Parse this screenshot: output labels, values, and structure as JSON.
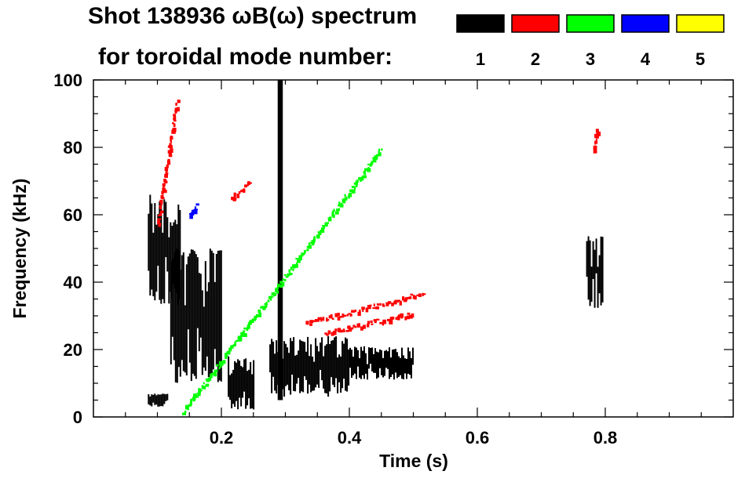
{
  "title_line1": "Shot 138936 ωB(ω) spectrum",
  "title_line2": "for toroidal mode number:",
  "chart_data": {
    "type": "heatmap",
    "title": "Shot 138936 ωB(ω) spectrum for toroidal mode number:",
    "xlabel": "Time (s)",
    "ylabel": "Frequency (kHz)",
    "xlim": [
      0.0,
      1.0
    ],
    "ylim": [
      0,
      100
    ],
    "x_ticks": [
      0.2,
      0.4,
      0.6,
      0.8
    ],
    "x_tick_labels": [
      "0.2",
      "0.4",
      "0.6",
      "0.8"
    ],
    "y_ticks": [
      0,
      20,
      40,
      60,
      80,
      100
    ],
    "y_tick_labels": [
      "0",
      "20",
      "40",
      "60",
      "80",
      "100"
    ],
    "grid": false,
    "legend_position": "top-right",
    "legend": [
      {
        "mode": "1",
        "color": "#000000"
      },
      {
        "mode": "2",
        "color": "#ff0000"
      },
      {
        "mode": "3",
        "color": "#00ff00"
      },
      {
        "mode": "4",
        "color": "#0000ff"
      },
      {
        "mode": "5",
        "color": "#ffff00"
      }
    ],
    "regions": [
      {
        "name": "early-n1-band",
        "mode": "1",
        "t": [
          0.085,
          0.135
        ],
        "f": [
          32,
          66
        ]
      },
      {
        "name": "early-n1-lower",
        "mode": "1",
        "t": [
          0.085,
          0.115
        ],
        "f": [
          3,
          7
        ]
      },
      {
        "name": "n1-spread-0.13-0.20",
        "mode": "1",
        "t": [
          0.12,
          0.2
        ],
        "f": [
          10,
          50
        ]
      },
      {
        "name": "n1-burst-0.21-0.25",
        "mode": "1",
        "t": [
          0.21,
          0.25
        ],
        "f": [
          2,
          18
        ]
      },
      {
        "name": "n1-vertical-0.29",
        "mode": "1",
        "t": [
          0.288,
          0.296
        ],
        "f": [
          5,
          100
        ]
      },
      {
        "name": "n1-main-band",
        "mode": "1",
        "t": [
          0.275,
          0.4
        ],
        "f": [
          6,
          24
        ]
      },
      {
        "name": "n1-tail-band",
        "mode": "1",
        "t": [
          0.4,
          0.5
        ],
        "f": [
          11,
          21
        ]
      },
      {
        "name": "n1-0.78-burst",
        "mode": "1",
        "t": [
          0.77,
          0.795
        ],
        "f": [
          32,
          54
        ]
      },
      {
        "name": "n2-early-chirp",
        "mode": "2",
        "t": [
          0.1,
          0.13
        ],
        "f": [
          58,
          95
        ]
      },
      {
        "name": "n2-0.21-chirp",
        "mode": "2",
        "t": [
          0.215,
          0.245
        ],
        "f": [
          65,
          70
        ]
      },
      {
        "name": "n2-0.35-chirp",
        "mode": "2",
        "t": [
          0.33,
          0.52
        ],
        "f": [
          28,
          37
        ]
      },
      {
        "name": "n2-0.40-chirp",
        "mode": "2",
        "t": [
          0.36,
          0.5
        ],
        "f": [
          25,
          31
        ]
      },
      {
        "name": "n2-0.78",
        "mode": "2",
        "t": [
          0.78,
          0.787
        ],
        "f": [
          80,
          86
        ]
      },
      {
        "name": "n3-speckles",
        "mode": "3",
        "t": [
          0.14,
          0.45
        ],
        "f": [
          2,
          80
        ]
      },
      {
        "name": "n4-speckles",
        "mode": "4",
        "t": [
          0.15,
          0.16
        ],
        "f": [
          60,
          63
        ]
      }
    ]
  }
}
